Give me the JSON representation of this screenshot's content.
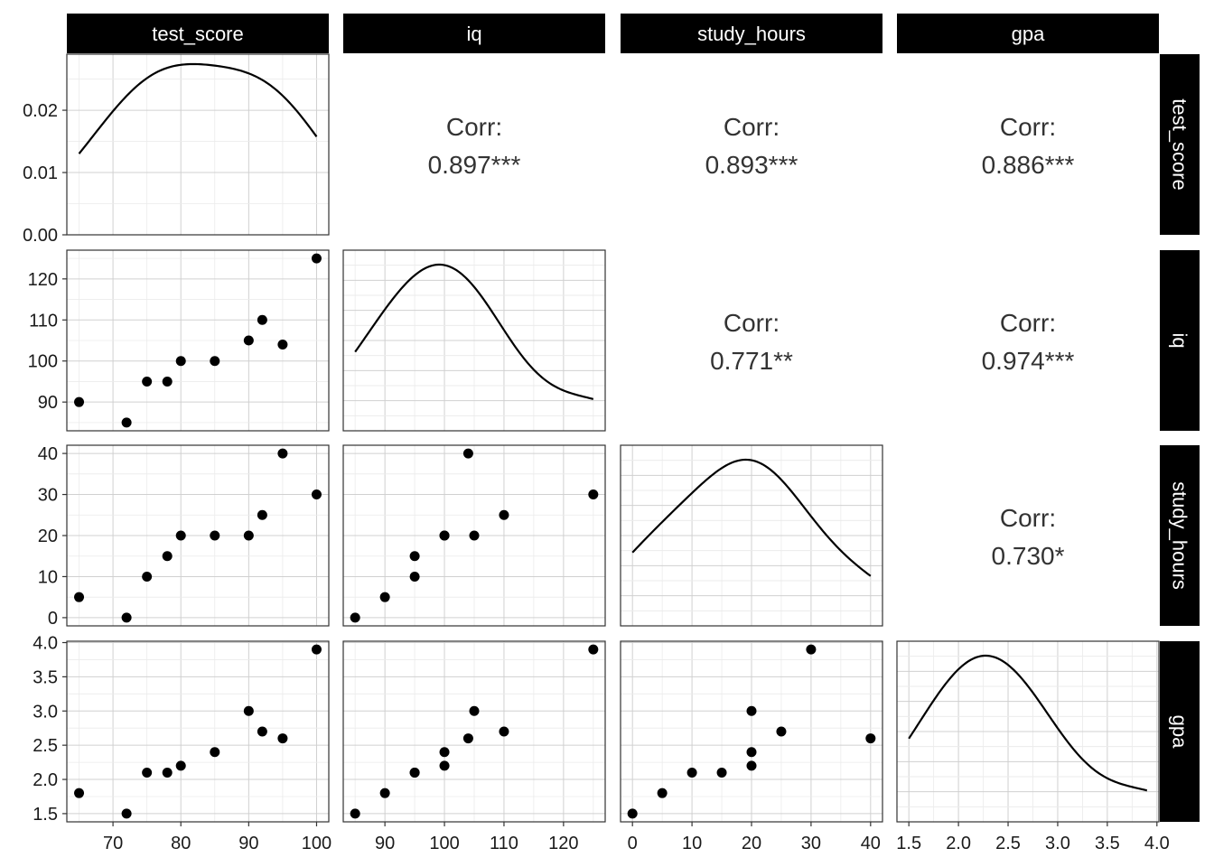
{
  "chart_data": {
    "type": "scatter",
    "variables": [
      "test_score",
      "iq",
      "study_hours",
      "gpa"
    ],
    "observations": {
      "test_score": [
        65,
        72,
        75,
        78,
        80,
        85,
        90,
        92,
        95,
        100
      ],
      "iq": [
        90,
        85,
        95,
        95,
        100,
        100,
        105,
        110,
        104,
        125
      ],
      "study_hours": [
        5,
        0,
        10,
        15,
        20,
        20,
        20,
        25,
        40,
        30
      ],
      "gpa": [
        1.8,
        1.5,
        2.1,
        2.1,
        2.2,
        2.4,
        3.0,
        2.7,
        2.6,
        3.9
      ]
    },
    "correlations": [
      {
        "row": "test_score",
        "col": "iq",
        "label": "Corr:",
        "value": "0.897***"
      },
      {
        "row": "test_score",
        "col": "study_hours",
        "label": "Corr:",
        "value": "0.893***"
      },
      {
        "row": "test_score",
        "col": "gpa",
        "label": "Corr:",
        "value": "0.886***"
      },
      {
        "row": "iq",
        "col": "study_hours",
        "label": "Corr:",
        "value": "0.771**"
      },
      {
        "row": "iq",
        "col": "gpa",
        "label": "Corr:",
        "value": "0.974***"
      },
      {
        "row": "study_hours",
        "col": "gpa",
        "label": "Corr:",
        "value": "0.730*"
      }
    ],
    "density_diagonal": {
      "test_score": {
        "ylim": [
          0,
          0.029
        ],
        "y_ticks": [
          "0.00",
          "0.01",
          "0.02"
        ],
        "y_tick_values": [
          0,
          0.01,
          0.02
        ]
      }
    },
    "axes": {
      "test_score": {
        "lim": [
          63.2,
          101.8
        ],
        "ticks": [
          70,
          80,
          90,
          100
        ],
        "tick_labels": [
          "70",
          "80",
          "90",
          "100"
        ]
      },
      "iq": {
        "lim": [
          83,
          127
        ],
        "ticks": [
          90,
          100,
          110,
          120
        ],
        "tick_labels": [
          "90",
          "100",
          "110",
          "120"
        ]
      },
      "study_hours": {
        "lim": [
          -2,
          42
        ],
        "ticks": [
          0,
          10,
          20,
          30,
          40
        ],
        "tick_labels": [
          "0",
          "10",
          "20",
          "30",
          "40"
        ]
      },
      "gpa": {
        "lim": [
          1.38,
          4.02
        ],
        "ticks": [
          1.5,
          2.0,
          2.5,
          3.0,
          3.5,
          4.0
        ],
        "tick_labels": [
          "1.5",
          "2.0",
          "2.5",
          "3.0",
          "3.5",
          "4.0"
        ]
      }
    },
    "grid": true,
    "facet_strips": [
      "test_score",
      "iq",
      "study_hours",
      "gpa"
    ]
  }
}
